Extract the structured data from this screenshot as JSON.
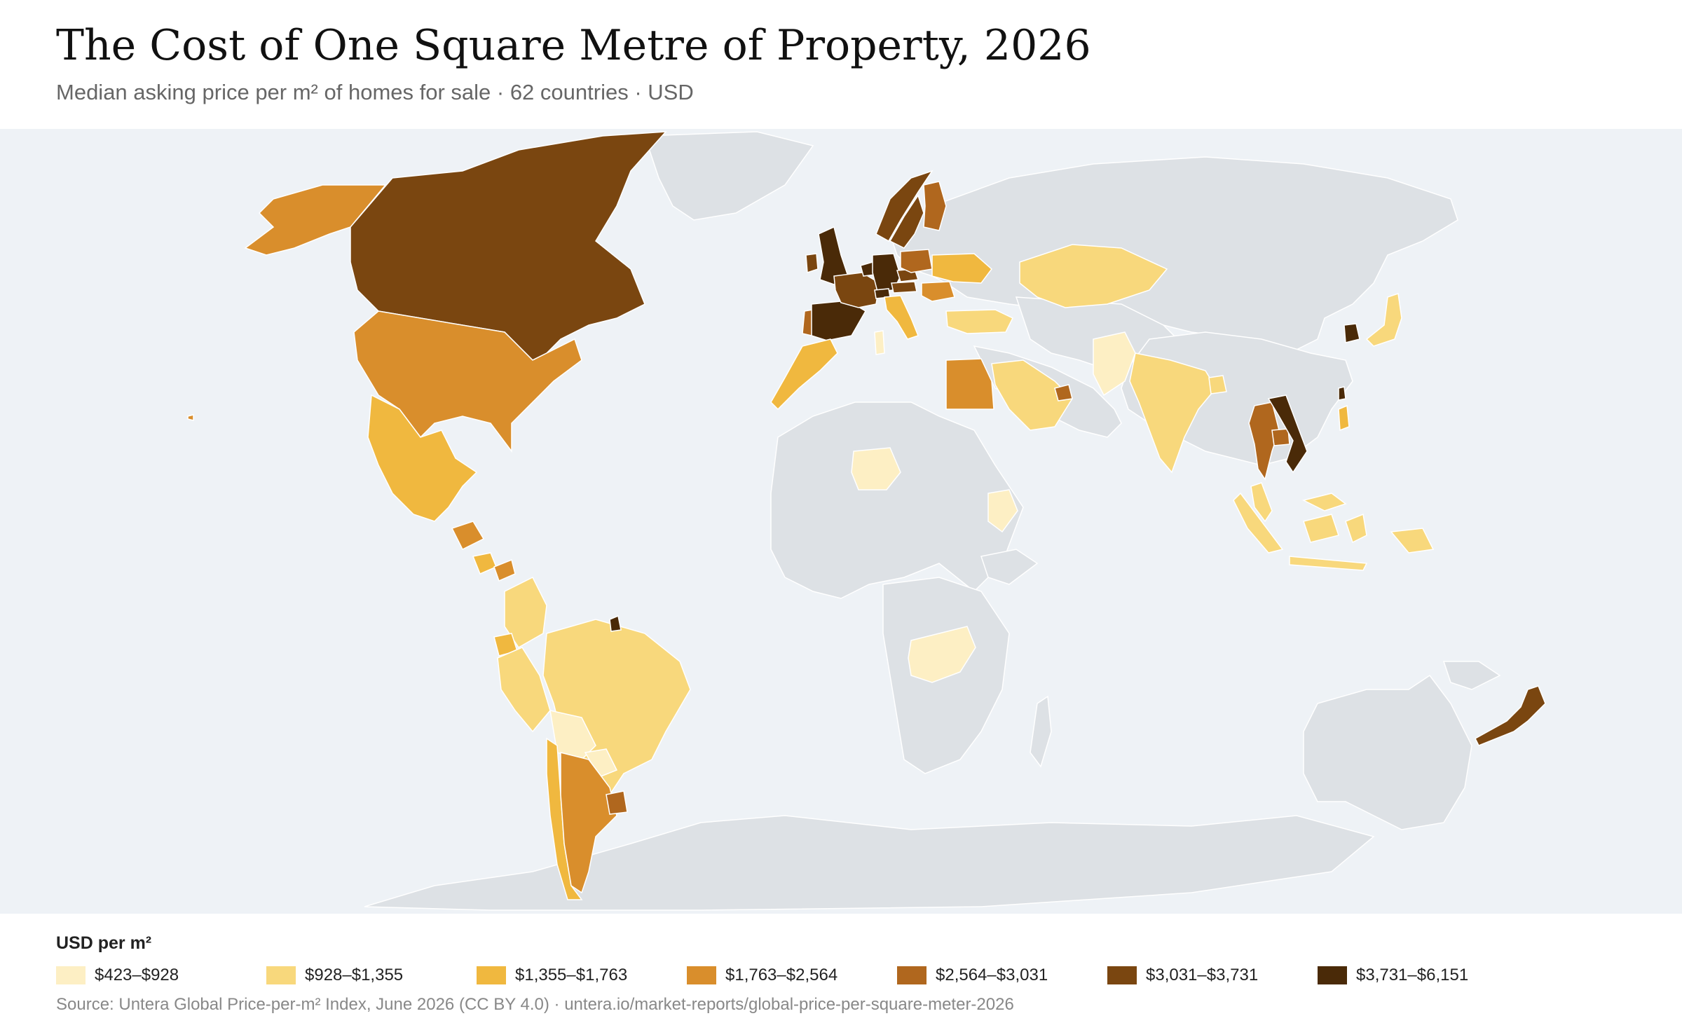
{
  "title": "The Cost of One Square Metre of Property, 2026",
  "subtitle": "Median asking price per m² of homes for sale · 62 countries · USD",
  "legend": {
    "title": "USD per m²",
    "bins": [
      {
        "label": "$423–$928",
        "color": "#fdefc4"
      },
      {
        "label": "$928–$1,355",
        "color": "#f8d87c"
      },
      {
        "label": "$1,355–$1,763",
        "color": "#f0b83f"
      },
      {
        "label": "$1,763–$2,564",
        "color": "#d98e2c"
      },
      {
        "label": "$2,564–$3,031",
        "color": "#b0671e"
      },
      {
        "label": "$3,031–$3,731",
        "color": "#7a4610"
      },
      {
        "label": "$3,731–$6,151",
        "color": "#4a2a08"
      }
    ]
  },
  "colors": {
    "ocean": "#eef2f6",
    "no_data": "#dde1e5",
    "border": "#ffffff"
  },
  "regions": [
    {
      "name": "Canada",
      "bin": 5
    },
    {
      "name": "United States",
      "bin": 3
    },
    {
      "name": "Alaska",
      "bin": 3
    },
    {
      "name": "Mexico",
      "bin": 2
    },
    {
      "name": "Guatemala",
      "bin": 3
    },
    {
      "name": "Costa Rica",
      "bin": 2
    },
    {
      "name": "Panama",
      "bin": 3
    },
    {
      "name": "Colombia",
      "bin": 1
    },
    {
      "name": "Ecuador",
      "bin": 2
    },
    {
      "name": "Peru",
      "bin": 1
    },
    {
      "name": "Brazil",
      "bin": 1
    },
    {
      "name": "Bolivia",
      "bin": 0
    },
    {
      "name": "Paraguay",
      "bin": 0
    },
    {
      "name": "Chile",
      "bin": 2
    },
    {
      "name": "Argentina",
      "bin": 3
    },
    {
      "name": "Uruguay",
      "bin": 4
    },
    {
      "name": "French Guiana",
      "bin": 6
    },
    {
      "name": "United Kingdom",
      "bin": 6
    },
    {
      "name": "Ireland",
      "bin": 5
    },
    {
      "name": "Spain",
      "bin": 6
    },
    {
      "name": "Portugal",
      "bin": 4
    },
    {
      "name": "France",
      "bin": 5
    },
    {
      "name": "Germany",
      "bin": 6
    },
    {
      "name": "Netherlands",
      "bin": 6
    },
    {
      "name": "Switzerland",
      "bin": 6
    },
    {
      "name": "Italy",
      "bin": 2
    },
    {
      "name": "Poland",
      "bin": 4
    },
    {
      "name": "Czechia",
      "bin": 5
    },
    {
      "name": "Austria",
      "bin": 5
    },
    {
      "name": "Romania",
      "bin": 3
    },
    {
      "name": "Ukraine",
      "bin": 2
    },
    {
      "name": "Sweden",
      "bin": 5
    },
    {
      "name": "Norway",
      "bin": 5
    },
    {
      "name": "Finland",
      "bin": 4
    },
    {
      "name": "Turkey",
      "bin": 1
    },
    {
      "name": "Morocco",
      "bin": 2
    },
    {
      "name": "Tunisia",
      "bin": 0
    },
    {
      "name": "Egypt",
      "bin": 3
    },
    {
      "name": "Nigeria",
      "bin": 0
    },
    {
      "name": "Kenya",
      "bin": 0
    },
    {
      "name": "South Africa",
      "bin": 0
    },
    {
      "name": "Saudi Arabia",
      "bin": 1
    },
    {
      "name": "United Arab Emirates",
      "bin": 4
    },
    {
      "name": "Kazakhstan",
      "bin": 1
    },
    {
      "name": "Pakistan",
      "bin": 0
    },
    {
      "name": "India",
      "bin": 1
    },
    {
      "name": "Bangladesh",
      "bin": 1
    },
    {
      "name": "Thailand",
      "bin": 4
    },
    {
      "name": "Vietnam",
      "bin": 6
    },
    {
      "name": "Cambodia",
      "bin": 4
    },
    {
      "name": "Malaysia",
      "bin": 1
    },
    {
      "name": "Indonesia",
      "bin": 1
    },
    {
      "name": "Philippines",
      "bin": 2
    },
    {
      "name": "Taiwan",
      "bin": 6
    },
    {
      "name": "South Korea",
      "bin": 6
    },
    {
      "name": "Japan",
      "bin": 1
    },
    {
      "name": "New Zealand",
      "bin": 5
    },
    {
      "name": "Hawaii",
      "bin": 3
    }
  ],
  "source": "Source: Untera Global Price-per-m² Index, June 2026 (CC BY 4.0) · untera.io/market-reports/global-price-per-square-meter-2026"
}
